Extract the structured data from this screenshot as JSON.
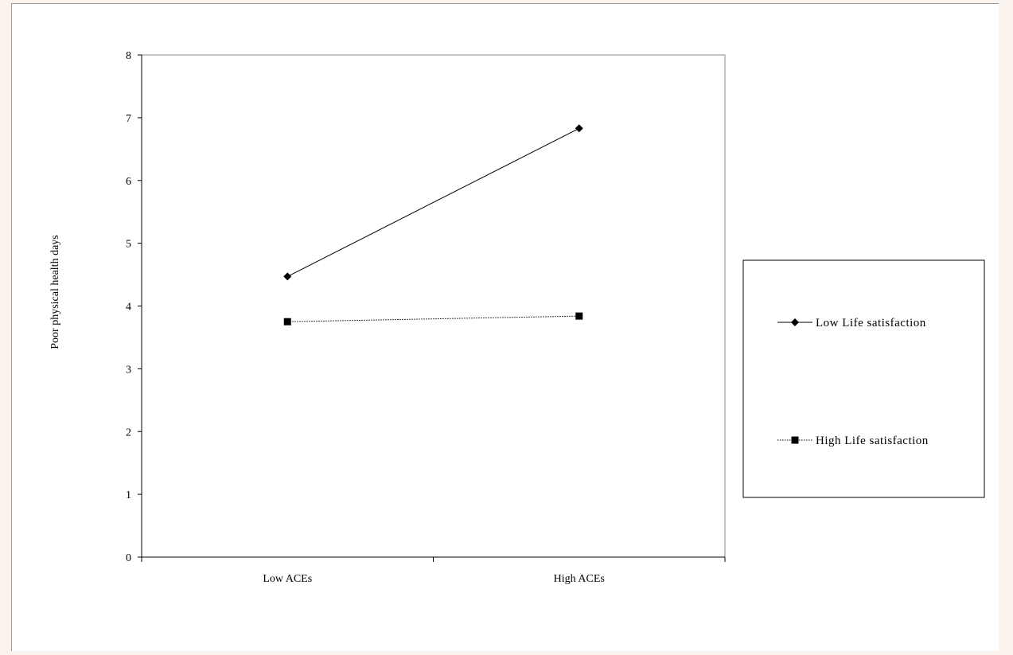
{
  "chart_data": {
    "type": "line",
    "categories": [
      "Low ACEs",
      "High ACEs"
    ],
    "ylabel": "Poor physical health days",
    "ylim": [
      0,
      8
    ],
    "yticks": [
      "0",
      "1",
      "2",
      "3",
      "4",
      "5",
      "6",
      "7",
      "8"
    ],
    "grid": false,
    "legend_position": "right",
    "series": [
      {
        "name": "Low Life satisfaction",
        "values": [
          4.47,
          6.83
        ],
        "marker": "diamond",
        "line_style": "solid",
        "color": "#000000"
      },
      {
        "name": "High Life satisfaction",
        "values": [
          3.75,
          3.84
        ],
        "marker": "square",
        "line_style": "dotted",
        "color": "#000000"
      }
    ]
  }
}
